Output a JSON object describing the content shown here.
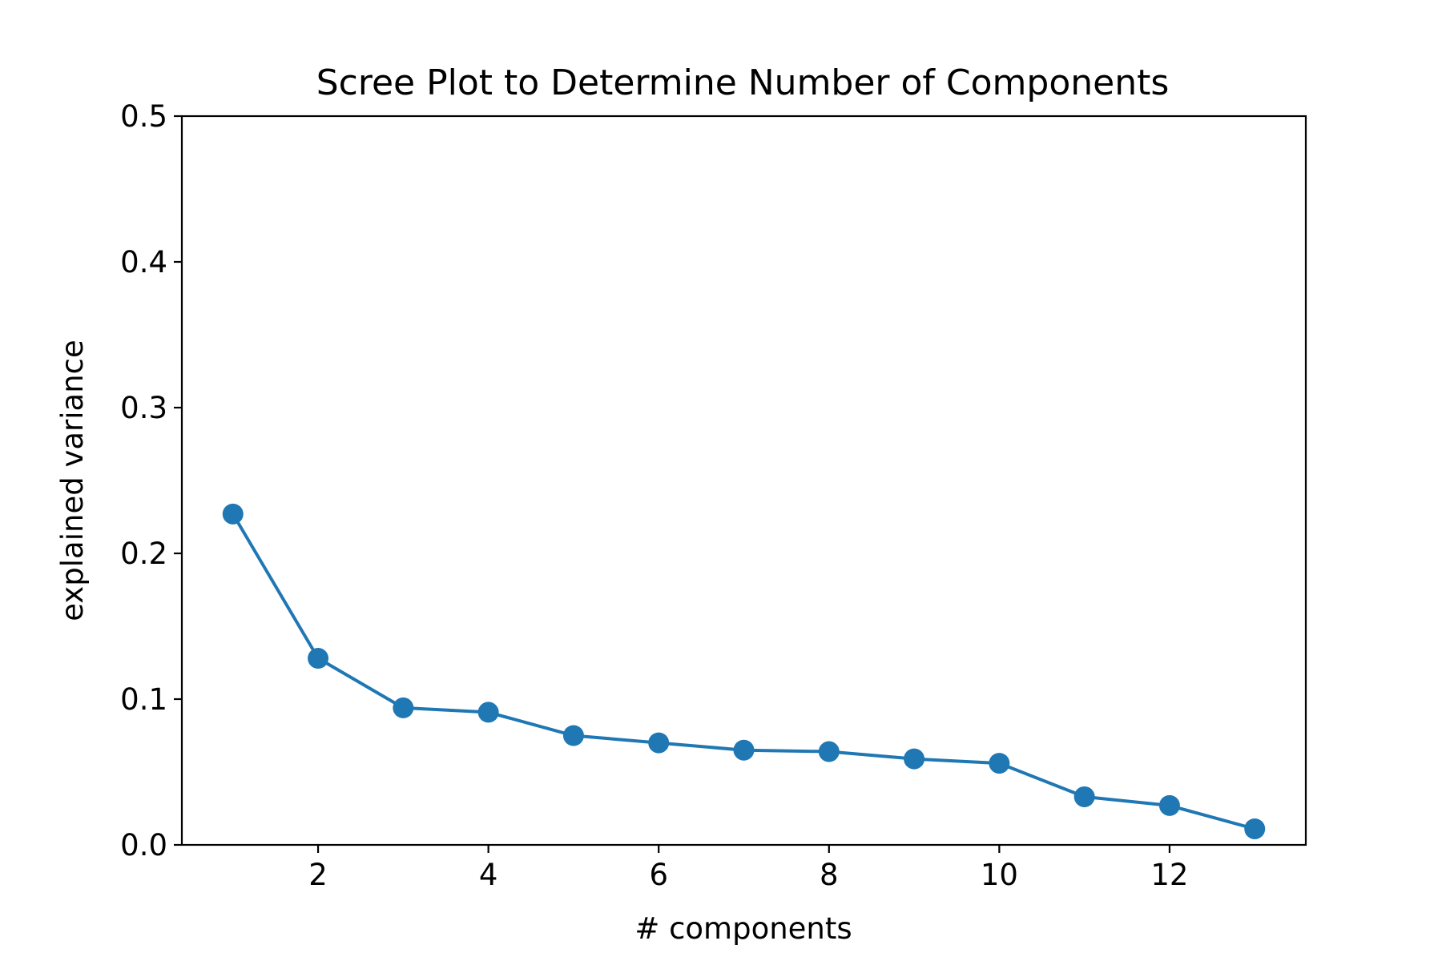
{
  "chart_data": {
    "type": "line",
    "title": "Scree Plot to Determine Number of Components",
    "xlabel": "# components",
    "ylabel": "explained variance",
    "xlim": [
      0.4,
      13.6
    ],
    "ylim": [
      0.0,
      0.5
    ],
    "xticks": [
      2,
      4,
      6,
      8,
      10,
      12
    ],
    "yticks": [
      0.0,
      0.1,
      0.2,
      0.3,
      0.4,
      0.5
    ],
    "ytick_labels": [
      "0.0",
      "0.1",
      "0.2",
      "0.3",
      "0.4",
      "0.5"
    ],
    "grid": false,
    "series": [
      {
        "color": "#1f77b4",
        "marker": "circle",
        "x": [
          1,
          2,
          3,
          4,
          5,
          6,
          7,
          8,
          9,
          10,
          11,
          12,
          13
        ],
        "y": [
          0.227,
          0.128,
          0.094,
          0.091,
          0.075,
          0.07,
          0.065,
          0.064,
          0.059,
          0.056,
          0.033,
          0.027,
          0.011
        ]
      }
    ]
  }
}
